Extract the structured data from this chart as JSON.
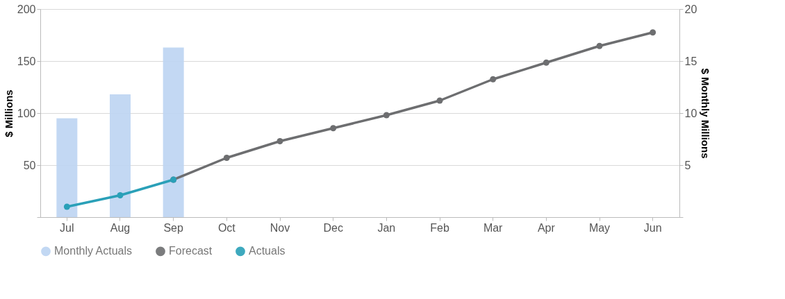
{
  "chart_data": {
    "type": "bar",
    "ylabel": "$ Millions",
    "y2label": "$ Monthly Millions",
    "categories": [
      "Jul",
      "Aug",
      "Sep",
      "Oct",
      "Nov",
      "Dec",
      "Jan",
      "Feb",
      "Mar",
      "Apr",
      "May",
      "Jun"
    ],
    "series": [
      {
        "name": "Monthly Actuals",
        "axis": "y2",
        "color": "#bcd4f2",
        "values": [
          9.5,
          11.8,
          16.3,
          null,
          null,
          null,
          null,
          null,
          null,
          null,
          null,
          null
        ]
      },
      {
        "name": "Forecast",
        "type": "line",
        "color": "#6d6e70",
        "marker": "circle",
        "values": [
          null,
          null,
          36,
          57,
          73,
          85.5,
          98,
          112,
          132.5,
          148.5,
          164.5,
          177.5
        ]
      },
      {
        "name": "Actuals",
        "type": "line",
        "color": "#2aa0b8",
        "marker": "circle",
        "values": [
          10,
          21,
          36,
          null,
          null,
          null,
          null,
          null,
          null,
          null,
          null,
          null
        ]
      }
    ],
    "ylim": [
      0,
      200
    ],
    "yticks": [
      {
        "value": 0,
        "label": null
      },
      50,
      100,
      150,
      200
    ],
    "y2lim": [
      0,
      20
    ],
    "y2ticks": [
      {
        "value": 0,
        "label": null
      },
      5,
      10,
      15,
      20
    ],
    "grid": "y",
    "legend": "bottom"
  }
}
